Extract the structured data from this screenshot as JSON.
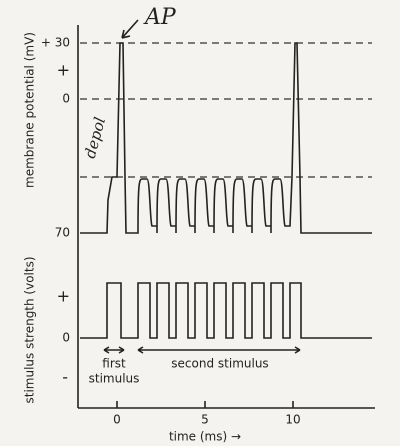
{
  "top_panel": {
    "axis_label": "membrane potential (mV)",
    "tick_labels": [
      "+ 30",
      "+",
      "0",
      "70"
    ],
    "annotations": {
      "ap": "AP",
      "depol": "depol"
    }
  },
  "bottom_panel": {
    "axis_label": "stimulus strength (volts)",
    "tick_labels": [
      "+",
      "0",
      "-"
    ],
    "annotations": {
      "first_line1": "first",
      "first_line2": "stimulus",
      "second": "second stimulus"
    }
  },
  "x_axis": {
    "label": "time (ms) →",
    "tick_labels": [
      "0",
      "5",
      "10"
    ]
  }
}
